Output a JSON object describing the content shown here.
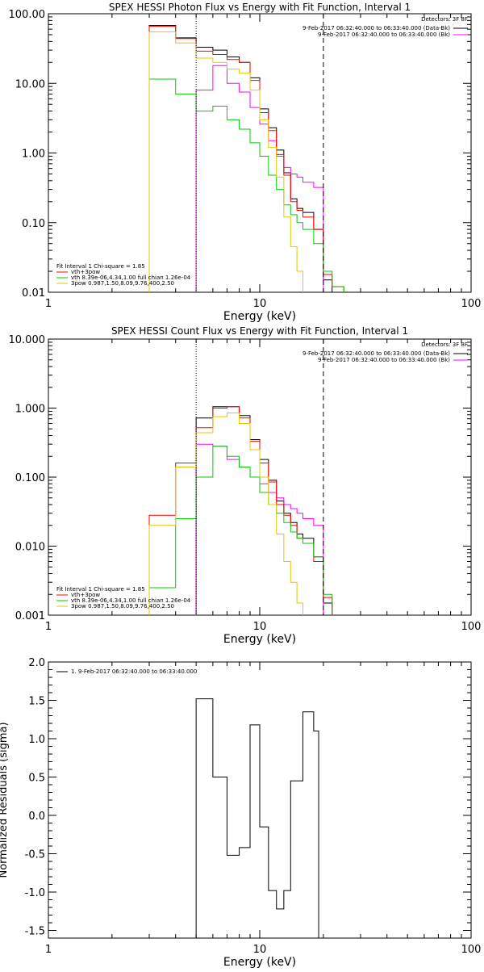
{
  "chart_data": [
    {
      "type": "line",
      "step": true,
      "title": "SPEX HESSI Photon Flux vs Energy with Fit Function, Interval 1",
      "xlabel": "Energy (keV)",
      "ylabel": "",
      "xscale": "log",
      "yscale": "log",
      "xlim": [
        1,
        100
      ],
      "ylim": [
        0.01,
        100
      ],
      "xticks": [
        "1",
        "10",
        "100"
      ],
      "yticks": [
        "0.01",
        "0.10",
        "1.00",
        "10.00",
        "100.00"
      ],
      "ytick_values": [
        0.01,
        0.1,
        1,
        10,
        100
      ],
      "edges": [
        3,
        4,
        5,
        6,
        7,
        8,
        9,
        10,
        11,
        12,
        13,
        14,
        15,
        16,
        18,
        20,
        22,
        25
      ],
      "vlines": [
        {
          "x": 5.0,
          "style": "dotted",
          "color": "#000000"
        },
        {
          "x": 20.0,
          "style": "dashed",
          "color": "#000000"
        }
      ],
      "legend_top": {
        "header": "Detectors: 3F 8F",
        "items": [
          {
            "text": "9-Feb-2017 06:32:40.000 to 06:33:40.000 (Data-Bk)",
            "color": "#000000"
          },
          {
            "text": "9-Feb-2017 06:32:40.000 to 06:33:40.000 (Bk)",
            "color": "#ff00ff"
          }
        ]
      },
      "legend_bottom": {
        "header": "Fit Interval 1    Chi-square = 1.85",
        "items": [
          {
            "text": "vth+3pow",
            "color": "#ff0000"
          },
          {
            "text": "vth 8.39e-06,4.34,1.00  full chian 1.26e-04",
            "color": "#00cc00"
          },
          {
            "text": "3pow 0.987,1.50,8.09,9.76,400,2.50",
            "color": "#e6c800"
          }
        ]
      },
      "series": [
        {
          "name": "9-Feb-2017 06:32:40.000 to 06:33:40.000 (Data-Bk)",
          "color": "#000000",
          "values": [
            68,
            45,
            33,
            30,
            24,
            20,
            12,
            4.3,
            2.3,
            1.1,
            0.52,
            0.22,
            0.16,
            0.14,
            0.08,
            0.015,
            0.01
          ]
        },
        {
          "name": "9-Feb-2017 06:32:40.000 to 06:33:40.000 (Bk)",
          "color": "#ff00ff",
          "values": [
            null,
            null,
            8,
            18,
            10,
            7.5,
            4.5,
            2.6,
            1.5,
            0.9,
            0.62,
            0.5,
            0.45,
            0.38,
            0.32,
            0.01,
            null
          ]
        },
        {
          "name": "vth+3pow",
          "color": "#ff0000",
          "values": [
            66,
            44,
            29,
            26,
            22,
            20,
            11,
            3.8,
            2.1,
            0.95,
            0.48,
            0.2,
            0.15,
            0.12,
            0.08,
            0.018,
            0.012
          ]
        },
        {
          "name": "vth 8.39e-06,4.34,1.00  full chian 1.26e-04",
          "color": "#00cc00",
          "values": [
            11.5,
            7,
            4,
            4.7,
            3,
            2.2,
            1.4,
            0.9,
            0.48,
            0.3,
            0.18,
            0.13,
            0.1,
            0.08,
            0.05,
            0.02,
            0.012
          ]
        },
        {
          "name": "3pow 0.987,1.50,8.09,9.76,400,2.50",
          "color": "#e6c800",
          "values": [
            55,
            38,
            23,
            20,
            16,
            14,
            8,
            3,
            1.2,
            0.45,
            0.12,
            0.045,
            0.02,
            0.01,
            null,
            null,
            null
          ]
        }
      ]
    },
    {
      "type": "line",
      "step": true,
      "title": "SPEX HESSI Count Flux vs Energy with Fit Function, Interval 1",
      "xlabel": "Energy (keV)",
      "ylabel": "",
      "xscale": "log",
      "yscale": "log",
      "xlim": [
        1,
        100
      ],
      "ylim": [
        0.001,
        10
      ],
      "xticks": [
        "1",
        "10",
        "100"
      ],
      "yticks": [
        "0.001",
        "0.010",
        "0.100",
        "1.000",
        "10.000"
      ],
      "ytick_values": [
        0.001,
        0.01,
        0.1,
        1,
        10
      ],
      "edges": [
        3,
        4,
        5,
        6,
        7,
        8,
        9,
        10,
        11,
        12,
        13,
        14,
        15,
        16,
        18,
        20,
        22,
        25
      ],
      "vlines": [
        {
          "x": 5.0,
          "style": "dotted",
          "color": "#000000"
        },
        {
          "x": 20.0,
          "style": "dashed",
          "color": "#000000"
        }
      ],
      "legend_top": {
        "header": "Detectors: 3F 8F",
        "items": [
          {
            "text": "9-Feb-2017 06:32:40.000 to 06:33:40.000 (Data-Bk)",
            "color": "#000000"
          },
          {
            "text": "9-Feb-2017 06:32:40.000 to 06:33:40.000 (Bk)",
            "color": "#ff00ff"
          }
        ]
      },
      "legend_bottom": {
        "header": "Fit Interval 1    Chi-square = 1.85",
        "items": [
          {
            "text": "vth+3pow",
            "color": "#ff0000"
          },
          {
            "text": "vth 8.39e-06,4.34,1.00  full chian 1.26e-04",
            "color": "#00cc00"
          },
          {
            "text": "3pow 0.987,1.50,8.09,9.76,400,2.50",
            "color": "#e6c800"
          }
        ]
      },
      "series": [
        {
          "name": "9-Feb-2017 06:32:40.000 to 06:33:40.000 (Data-Bk)",
          "color": "#000000",
          "values": [
            null,
            null,
            0.72,
            1.05,
            1.05,
            0.78,
            0.35,
            0.18,
            0.09,
            0.045,
            0.03,
            0.022,
            0.015,
            0.013,
            0.007,
            0.0015,
            0.001
          ]
        },
        {
          "name": "9-Feb-2017 06:32:40.000 to 06:33:40.000 (Bk)",
          "color": "#ff00ff",
          "values": [
            null,
            null,
            0.3,
            0.28,
            0.18,
            0.14,
            0.1,
            0.08,
            0.06,
            0.05,
            0.04,
            0.035,
            0.03,
            0.025,
            0.02,
            0.001,
            null
          ]
        },
        {
          "name": "vth+3pow",
          "color": "#ff0000",
          "values": [
            0.028,
            0.16,
            0.52,
            1.0,
            1.05,
            0.72,
            0.33,
            0.16,
            0.085,
            0.04,
            0.028,
            0.02,
            0.013,
            0.011,
            0.006,
            0.0018,
            0.001
          ]
        },
        {
          "name": "vth 8.39e-06,4.34,1.00  full chian 1.26e-04",
          "color": "#00cc00",
          "values": [
            0.0025,
            0.025,
            0.1,
            0.28,
            0.2,
            0.14,
            0.1,
            0.06,
            0.04,
            0.03,
            0.022,
            0.016,
            0.013,
            0.011,
            0.007,
            0.002,
            0.001
          ]
        },
        {
          "name": "3pow 0.987,1.50,8.09,9.76,400,2.50",
          "color": "#e6c800",
          "values": [
            0.02,
            0.14,
            0.44,
            0.75,
            0.85,
            0.6,
            0.25,
            0.1,
            0.04,
            0.015,
            0.006,
            0.003,
            0.0015,
            0.001,
            null,
            null,
            null
          ]
        }
      ]
    },
    {
      "type": "line",
      "step": true,
      "title": "",
      "xlabel": "Energy (keV)",
      "ylabel": "Normalized Residuals (sigma)",
      "xscale": "log",
      "yscale": "linear",
      "xlim": [
        1,
        100
      ],
      "ylim": [
        -1.6,
        2.0
      ],
      "xticks": [
        "1",
        "10",
        "100"
      ],
      "yticks": [
        "-1.5",
        "-1.0",
        "-0.5",
        "0.0",
        "0.5",
        "1.0",
        "1.5",
        "2.0"
      ],
      "ytick_values": [
        -1.5,
        -1.0,
        -0.5,
        0.0,
        0.5,
        1.0,
        1.5,
        2.0
      ],
      "legend_top": {
        "header": "",
        "items": [
          {
            "text": "1.  9-Feb-2017 06:32:40.000 to 06:33:40.000",
            "color": "#000000"
          }
        ]
      },
      "edges": [
        5,
        6,
        7,
        8,
        9,
        10,
        11,
        12,
        13,
        14,
        16,
        18,
        19,
        20
      ],
      "series": [
        {
          "name": "1.  9-Feb-2017 06:32:40.000 to 06:33:40.000",
          "color": "#000000",
          "values": [
            1.52,
            0.5,
            -0.52,
            -0.42,
            1.18,
            -0.15,
            -0.98,
            -1.22,
            -0.98,
            0.45,
            1.35,
            1.1,
            -1.6
          ]
        }
      ]
    }
  ]
}
